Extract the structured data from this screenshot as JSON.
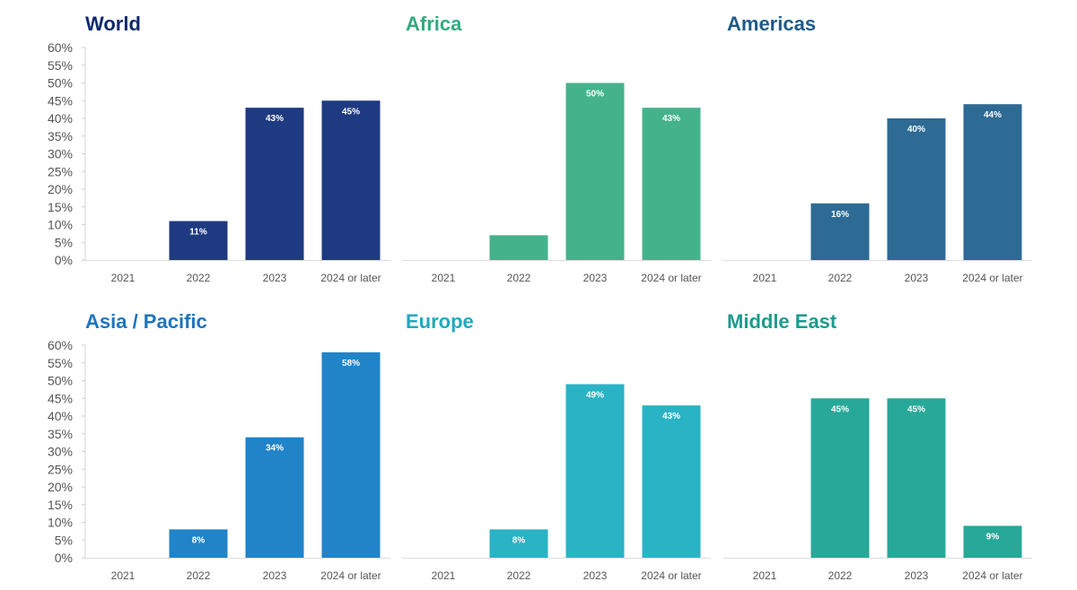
{
  "chart_data": [
    {
      "type": "bar",
      "title": "World",
      "title_color": "#0f2a6b",
      "bar_color": "#1e3a80",
      "categories": [
        "2021",
        "2022",
        "2023",
        "2024 or later"
      ],
      "values": [
        0,
        11,
        43,
        45
      ],
      "data_labels": [
        "",
        "11%",
        "43%",
        "45%"
      ],
      "ylim": [
        0,
        60
      ],
      "yticks": [
        "0%",
        "5%",
        "10%",
        "15%",
        "20%",
        "25%",
        "30%",
        "35%",
        "40%",
        "45%",
        "50%",
        "55%",
        "60%"
      ],
      "show_y_axis": true
    },
    {
      "type": "bar",
      "title": "Africa",
      "title_color": "#35a97f",
      "bar_color": "#44b38c",
      "categories": [
        "2021",
        "2022",
        "2023",
        "2024 or later"
      ],
      "values": [
        0,
        7,
        50,
        43
      ],
      "data_labels": [
        "",
        "",
        "50%",
        "43%"
      ],
      "ylim": [
        0,
        60
      ],
      "yticks": [],
      "show_y_axis": false
    },
    {
      "type": "bar",
      "title": "Americas",
      "title_color": "#1f5a86",
      "bar_color": "#2d6a94",
      "categories": [
        "2021",
        "2022",
        "2023",
        "2024 or later"
      ],
      "values": [
        0,
        16,
        40,
        44
      ],
      "data_labels": [
        "",
        "16%",
        "40%",
        "44%"
      ],
      "ylim": [
        0,
        60
      ],
      "yticks": [],
      "show_y_axis": false
    },
    {
      "type": "bar",
      "title": "Asia / Pacific",
      "title_color": "#1f74bd",
      "bar_color": "#2183c8",
      "categories": [
        "2021",
        "2022",
        "2023",
        "2024 or later"
      ],
      "values": [
        0,
        8,
        34,
        58
      ],
      "data_labels": [
        "",
        "8%",
        "34%",
        "58%"
      ],
      "ylim": [
        0,
        60
      ],
      "yticks": [
        "0%",
        "5%",
        "10%",
        "15%",
        "20%",
        "25%",
        "30%",
        "35%",
        "40%",
        "45%",
        "50%",
        "55%",
        "60%"
      ],
      "show_y_axis": true
    },
    {
      "type": "bar",
      "title": "Europe",
      "title_color": "#21a9bd",
      "bar_color": "#2ab3c5",
      "categories": [
        "2021",
        "2022",
        "2023",
        "2024 or later"
      ],
      "values": [
        0,
        8,
        49,
        43
      ],
      "data_labels": [
        "",
        "8%",
        "49%",
        "43%"
      ],
      "ylim": [
        0,
        60
      ],
      "yticks": [],
      "show_y_axis": false
    },
    {
      "type": "bar",
      "title": "Middle East",
      "title_color": "#1d9b8c",
      "bar_color": "#27a898",
      "categories": [
        "2021",
        "2022",
        "2023",
        "2024 or later"
      ],
      "values": [
        0,
        45,
        45,
        9
      ],
      "data_labels": [
        "",
        "45%",
        "45%",
        "9%"
      ],
      "ylim": [
        0,
        60
      ],
      "yticks": [],
      "show_y_axis": false
    }
  ]
}
